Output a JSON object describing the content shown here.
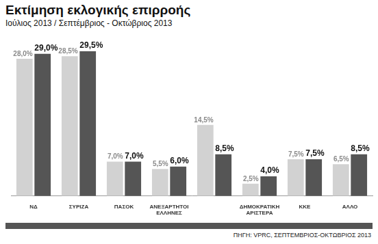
{
  "chart_data": {
    "type": "bar",
    "title": "Εκτίμηση εκλογικής επιρροής",
    "subtitle": "Ιούλιος 2013 / Σεπτέμβριος - Οκτώβριος 2013",
    "source": "ΠΗΓΗ: VPRC, ΣΕΠΤΕΜΒΡΙΟΣ-ΟΚΤΩΒΡΙΟΣ 2013",
    "categories": [
      "ΝΔ",
      "ΣΥΡΙΖΑ",
      "ΠΑΣΟΚ",
      "ΑΝΕΞΑΡΤΗΤΟΙ ΕΛΛΗΝΕΣ",
      null,
      "ΔΗΜΟΚΡΑΤΙΚΗ ΑΡΙΣΤΕΡΑ",
      "ΚΚΕ",
      "ΑΛΛΟ"
    ],
    "series": [
      {
        "color": "#d2d2d2",
        "values": [
          28.0,
          28.5,
          7.0,
          5.5,
          14.5,
          2.5,
          7.5,
          6.5
        ],
        "value_labels": [
          "28,0%",
          "28,5%",
          "7,0%",
          "5,5%",
          "14,5%",
          "2,5%",
          "7,5%",
          "6,5%"
        ]
      },
      {
        "color": "#555555",
        "values": [
          29.0,
          29.5,
          7.0,
          6.0,
          8.5,
          4.0,
          7.5,
          8.5
        ],
        "value_labels": [
          "29,0%",
          "29,5%",
          "7,0%",
          "6,0%",
          "8,5%",
          "4,0%",
          "7,5%",
          "8,5%"
        ]
      }
    ],
    "ylim": [
      0,
      33
    ],
    "grid": false,
    "data_labels": true,
    "tick_labels": "x"
  }
}
